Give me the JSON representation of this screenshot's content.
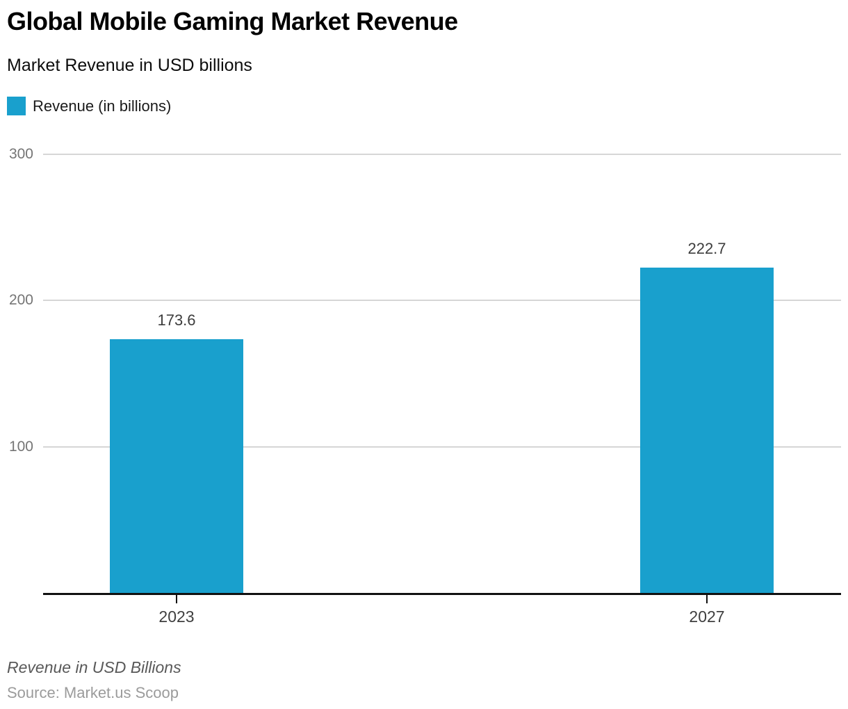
{
  "header": {
    "title": "Global Mobile Gaming Market Revenue",
    "subtitle": "Market Revenue in USD billions"
  },
  "legend": {
    "label": "Revenue (in billions)",
    "swatch_color": "#19A0CD"
  },
  "footer": {
    "note": "Revenue in USD Billions",
    "source": "Source: Market.us Scoop"
  },
  "chart_data": {
    "type": "bar",
    "title": "Global Mobile Gaming Market Revenue",
    "subtitle": "Market Revenue in USD billions",
    "categories": [
      "2023",
      "2027"
    ],
    "series": [
      {
        "name": "Revenue (in billions)",
        "values": [
          173.6,
          222.7
        ],
        "color": "#19A0CD"
      }
    ],
    "data_labels": [
      "173.6",
      "222.7"
    ],
    "xlabel": "",
    "ylabel": "Revenue in USD Billions",
    "ylim": [
      0,
      300
    ],
    "yticks": [
      100,
      200,
      300
    ],
    "grid": "horizontal",
    "legend_position": "top-left",
    "tick_label_color": "#757575",
    "gridline_color": "#d6d6d6",
    "axis_color": "#111111"
  }
}
